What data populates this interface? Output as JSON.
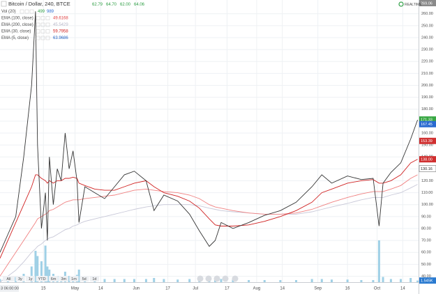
{
  "chart_data": {
    "type": "line",
    "title": "Bitcoin / Dollar, 240, BTCE",
    "ohlc": [
      {
        "value": 62.79,
        "label": "62.79"
      },
      {
        "value": 64.7,
        "label": "64.70"
      },
      {
        "value": 62.0,
        "label": "62.00"
      },
      {
        "value": 64.06,
        "label": "64.06"
      }
    ],
    "realtime_label": "REALTIME",
    "legend": [
      {
        "name": "Vol (20)",
        "readings": [
          499,
          989
        ],
        "color": "#2e9e44"
      },
      {
        "name": "EMA (100, close)",
        "readings": [
          49.6168
        ],
        "color": "#e04040"
      },
      {
        "name": "EMA (200, close)",
        "readings": [
          45.5429
        ],
        "color": "#b8b8c8"
      },
      {
        "name": "EMA (30, close)",
        "readings": [
          59.7958
        ],
        "color": "#d02020"
      },
      {
        "name": "EMA (5, close)",
        "readings": [
          63.9686
        ],
        "color": "#2060c0"
      }
    ],
    "x": [
      -8,
      -4,
      0,
      4,
      8,
      10,
      11,
      13,
      15,
      16,
      17,
      19,
      21,
      23,
      25,
      27,
      29,
      31,
      32,
      35,
      40,
      45,
      50,
      55,
      60,
      66,
      70,
      75,
      82,
      88,
      93,
      98,
      101,
      104,
      110,
      118,
      126,
      134,
      142,
      150,
      155,
      160,
      168,
      175,
      181,
      184,
      186,
      190,
      195,
      200,
      203.5
    ],
    "price": {
      "color": "#333333",
      "values": [
        60,
        75,
        90,
        140,
        200,
        262,
        150,
        80,
        110,
        70,
        140,
        100,
        130,
        120,
        160,
        130,
        145,
        120,
        85,
        115,
        110,
        105,
        115,
        125,
        128,
        120,
        95,
        108,
        103,
        92,
        78,
        65,
        70,
        85,
        80,
        85,
        91,
        95,
        102,
        115,
        125,
        118,
        124,
        121,
        122,
        82,
        118,
        127,
        135,
        155,
        171
      ]
    },
    "series": [
      {
        "name": "EMA (200, close)",
        "color": "#c8c8d8",
        "values": [
          35,
          40,
          45,
          52,
          60,
          63,
          65,
          67,
          70,
          71,
          72,
          73,
          75,
          77,
          79,
          80,
          82,
          83,
          84,
          86,
          88,
          90,
          92,
          94,
          96,
          98,
          99,
          100,
          100,
          100,
          99,
          97,
          96,
          95,
          94,
          93,
          92,
          92,
          92,
          94,
          96,
          98,
          101,
          104,
          106,
          106,
          106,
          108,
          110,
          114,
          117
        ]
      },
      {
        "name": "EMA (100, close)",
        "color": "#f08080",
        "values": [
          40,
          50,
          60,
          70,
          80,
          85,
          88,
          90,
          92,
          93,
          95,
          96,
          98,
          100,
          102,
          103,
          104,
          104,
          104,
          105,
          106,
          107,
          108,
          110,
          112,
          113,
          112,
          111,
          110,
          108,
          105,
          100,
          98,
          97,
          95,
          93,
          92,
          92,
          93,
          96,
          99,
          102,
          106,
          109,
          111,
          111,
          111,
          113,
          116,
          122,
          125
        ]
      },
      {
        "name": "EMA (30, close)",
        "color": "#d02020",
        "values": [
          55,
          70,
          85,
          100,
          115,
          125,
          125,
          122,
          120,
          118,
          120,
          118,
          120,
          120,
          122,
          122,
          123,
          122,
          118,
          116,
          113,
          112,
          112,
          115,
          118,
          120,
          115,
          110,
          107,
          103,
          97,
          88,
          83,
          82,
          82,
          83,
          86,
          90,
          95,
          102,
          110,
          113,
          118,
          120,
          121,
          118,
          118,
          120,
          125,
          135,
          138
        ]
      }
    ],
    "volume": {
      "color": "#9fd0e6",
      "values": [
        3000,
        4000,
        5000,
        8000,
        15000,
        30000,
        25000,
        20000,
        35000,
        15000,
        12000,
        8000,
        6000,
        5000,
        10000,
        6000,
        5000,
        7000,
        12000,
        6000,
        4000,
        3000,
        3000,
        3000,
        3000,
        3000,
        4000,
        3000,
        2500,
        3000,
        4000,
        6000,
        4000,
        3000,
        2500,
        2000,
        2000,
        2000,
        2000,
        3000,
        3000,
        2500,
        2500,
        2000,
        2000,
        40000,
        5000,
        3000,
        3000,
        4000,
        1545
      ]
    },
    "volume_badge": {
      "value": 1545,
      "label": "1.545K",
      "color": "#2a7ad0"
    },
    "xlim": [
      -8,
      204
    ],
    "xticks": [
      {
        "value": 14,
        "label": "15"
      },
      {
        "value": 30,
        "label": "May"
      },
      {
        "value": 43,
        "label": "14"
      },
      {
        "value": 61,
        "label": "Jun"
      },
      {
        "value": 77,
        "label": "17"
      },
      {
        "value": 91,
        "label": "Jul"
      },
      {
        "value": 107,
        "label": "17"
      },
      {
        "value": 122,
        "label": "Aug"
      },
      {
        "value": 135,
        "label": "14"
      },
      {
        "value": 153,
        "label": "Sep"
      },
      {
        "value": 168,
        "label": "16"
      },
      {
        "value": 183,
        "label": "Oct"
      },
      {
        "value": 196,
        "label": "14"
      }
    ],
    "crosshair_label": "3 06:00:00",
    "ylim": [
      35,
      268
    ],
    "yticks": [
      {
        "value": 40,
        "label": "40.00"
      },
      {
        "value": 50,
        "label": "50.00"
      },
      {
        "value": 60,
        "label": "60.00"
      },
      {
        "value": 70,
        "label": "70.00"
      },
      {
        "value": 80,
        "label": "80.00"
      },
      {
        "value": 90,
        "label": "90.00"
      },
      {
        "value": 100,
        "label": "100.00"
      },
      {
        "value": 110,
        "label": "110.00"
      },
      {
        "value": 120,
        "label": "120.00"
      },
      {
        "value": 130,
        "label": "130.00"
      },
      {
        "value": 140,
        "label": "140.00"
      },
      {
        "value": 150,
        "label": "150.00"
      },
      {
        "value": 160,
        "label": "160.00"
      },
      {
        "value": 170,
        "label": "170.00"
      },
      {
        "value": 180,
        "label": "180.00"
      },
      {
        "value": 190,
        "label": "190.00"
      },
      {
        "value": 200,
        "label": "200.00"
      },
      {
        "value": 210,
        "label": "210.00"
      },
      {
        "value": 220,
        "label": "220.00"
      },
      {
        "value": 230,
        "label": "230.00"
      },
      {
        "value": 240,
        "label": "240.00"
      },
      {
        "value": 250,
        "label": "250.00"
      },
      {
        "value": 260,
        "label": "260.00"
      }
    ],
    "price_badges": [
      {
        "value": 269.06,
        "label": "269.06",
        "color": "#8a8a8a"
      },
      {
        "value": 171.33,
        "label": "171.33",
        "color": "#3aa845"
      },
      {
        "value": 167.45,
        "label": "167.45",
        "color": "#2a6ad0"
      },
      {
        "value": 153.39,
        "label": "153.39",
        "color": "#d03030"
      },
      {
        "value": 138.0,
        "label": "138.00",
        "color": "#d03030"
      },
      {
        "value": 130.16,
        "label": "130.16",
        "color": "#ffffff"
      }
    ],
    "range_buttons": [
      "All",
      "3y",
      "1y",
      "YTD",
      "6m",
      "3m",
      "1m",
      "5d",
      "1d"
    ],
    "grid": true
  }
}
